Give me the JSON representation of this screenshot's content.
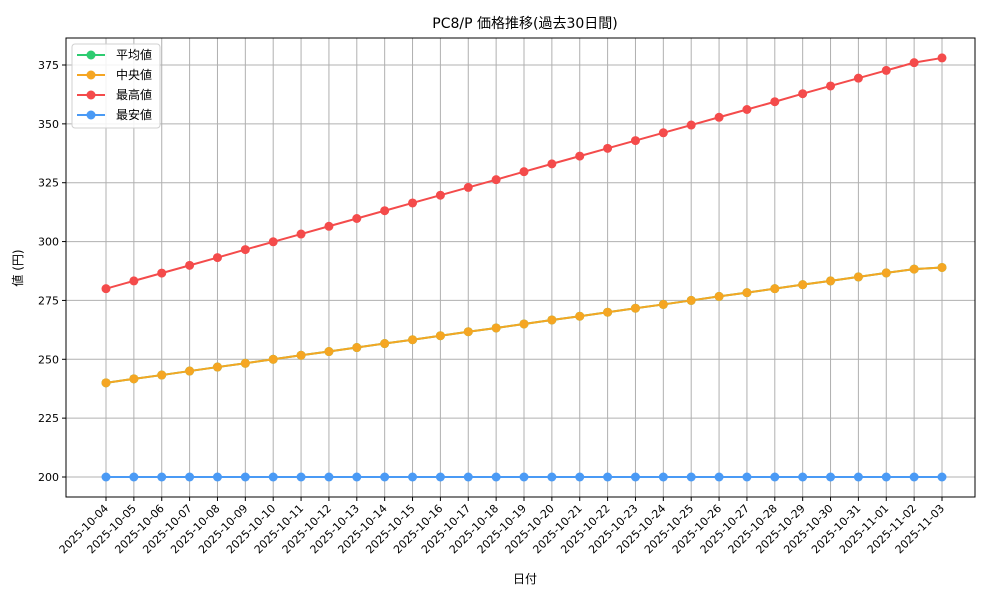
{
  "chart_data": {
    "type": "line",
    "title": "PC8/P 価格推移(過去30日間)",
    "xlabel": "日付",
    "ylabel": "値 (円)",
    "ylim": [
      190.9,
      387.1
    ],
    "yticks": [
      200,
      225,
      250,
      275,
      300,
      325,
      350,
      375
    ],
    "grid": true,
    "legend_position": "upper left",
    "categories": [
      "2025-10-04",
      "2025-10-05",
      "2025-10-06",
      "2025-10-07",
      "2025-10-08",
      "2025-10-09",
      "2025-10-10",
      "2025-10-11",
      "2025-10-12",
      "2025-10-13",
      "2025-10-14",
      "2025-10-15",
      "2025-10-16",
      "2025-10-17",
      "2025-10-18",
      "2025-10-19",
      "2025-10-20",
      "2025-10-21",
      "2025-10-22",
      "2025-10-23",
      "2025-10-24",
      "2025-10-25",
      "2025-10-26",
      "2025-10-27",
      "2025-10-28",
      "2025-10-29",
      "2025-10-30",
      "2025-10-31",
      "2025-11-01",
      "2025-11-02",
      "2025-11-03"
    ],
    "series": [
      {
        "name": "平均値",
        "color": "#2ecc71",
        "values": [
          240.0,
          241.7,
          243.3,
          245.0,
          246.7,
          248.3,
          250.0,
          251.7,
          253.3,
          255.0,
          256.7,
          258.3,
          260.0,
          261.7,
          263.3,
          265.0,
          266.7,
          268.3,
          270.0,
          271.7,
          273.3,
          275.0,
          276.7,
          278.3,
          280.0,
          281.7,
          283.3,
          285.0,
          286.7,
          288.3,
          289.0
        ]
      },
      {
        "name": "中央値",
        "color": "#f5a623",
        "values": [
          240.0,
          241.7,
          243.3,
          245.0,
          246.7,
          248.3,
          250.0,
          251.7,
          253.3,
          255.0,
          256.7,
          258.3,
          260.0,
          261.7,
          263.3,
          265.0,
          266.7,
          268.3,
          270.0,
          271.7,
          273.3,
          275.0,
          276.7,
          278.3,
          280.0,
          281.7,
          283.3,
          285.0,
          286.7,
          288.3,
          289.0
        ]
      },
      {
        "name": "最高値",
        "color": "#f44b4b",
        "values": [
          280.0,
          283.3,
          286.6,
          289.9,
          293.2,
          296.6,
          299.9,
          303.2,
          306.5,
          309.8,
          313.1,
          316.4,
          319.7,
          323.0,
          326.3,
          329.7,
          333.0,
          336.3,
          339.6,
          342.9,
          346.2,
          349.5,
          352.8,
          356.1,
          359.4,
          362.8,
          366.1,
          369.4,
          372.7,
          376.0,
          378.0
        ]
      },
      {
        "name": "最安値",
        "color": "#4a9af5",
        "values": [
          200,
          200,
          200,
          200,
          200,
          200,
          200,
          200,
          200,
          200,
          200,
          200,
          200,
          200,
          200,
          200,
          200,
          200,
          200,
          200,
          200,
          200,
          200,
          200,
          200,
          200,
          200,
          200,
          200,
          200,
          200
        ]
      }
    ]
  }
}
